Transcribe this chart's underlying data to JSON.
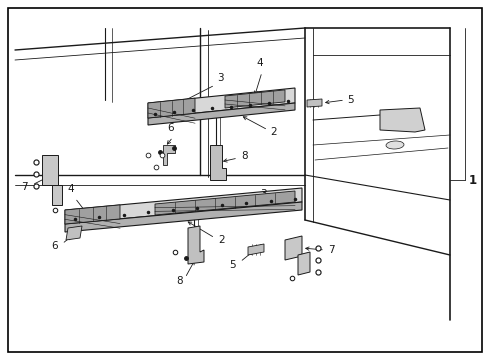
{
  "bg_color": "#ffffff",
  "border_color": "#000000",
  "line_color": "#1a1a1a",
  "fig_width": 4.9,
  "fig_height": 3.6,
  "dpi": 100,
  "label_fontsize": 7.5,
  "annotation_fontsize": 7.5
}
